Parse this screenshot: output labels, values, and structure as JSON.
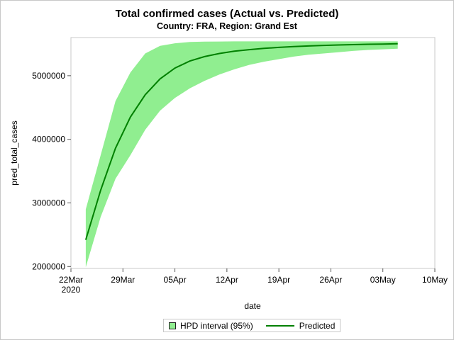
{
  "chart_data": {
    "type": "line",
    "title": "Total confirmed cases (Actual vs. Predicted)",
    "subtitle": "Country: FRA, Region: Grand Est",
    "xlabel": "date",
    "ylabel": "pred_total_cases",
    "xlim": [
      "2020-03-22",
      "2020-05-10"
    ],
    "ylim": [
      1970000,
      5600000
    ],
    "x_ticks": [
      {
        "date": "2020-03-22",
        "label": "22Mar",
        "sublabel": "2020"
      },
      {
        "date": "2020-03-29",
        "label": "29Mar"
      },
      {
        "date": "2020-04-05",
        "label": "05Apr"
      },
      {
        "date": "2020-04-12",
        "label": "12Apr"
      },
      {
        "date": "2020-04-19",
        "label": "19Apr"
      },
      {
        "date": "2020-04-26",
        "label": "26Apr"
      },
      {
        "date": "2020-05-03",
        "label": "03May"
      },
      {
        "date": "2020-05-10",
        "label": "10May"
      }
    ],
    "y_ticks": [
      {
        "value": 2000000,
        "label": "2000000"
      },
      {
        "value": 3000000,
        "label": "3000000"
      },
      {
        "value": 4000000,
        "label": "4000000"
      },
      {
        "value": 5000000,
        "label": "5000000"
      }
    ],
    "grid": false,
    "legend_position": "bottom",
    "x": [
      "2020-03-24",
      "2020-03-26",
      "2020-03-28",
      "2020-03-30",
      "2020-04-01",
      "2020-04-03",
      "2020-04-05",
      "2020-04-07",
      "2020-04-09",
      "2020-04-11",
      "2020-04-13",
      "2020-04-15",
      "2020-04-17",
      "2020-04-19",
      "2020-04-21",
      "2020-04-23",
      "2020-04-25",
      "2020-04-27",
      "2020-04-29",
      "2020-05-01",
      "2020-05-03",
      "2020-05-05"
    ],
    "series": [
      {
        "name": "Predicted",
        "color": "#008000",
        "values": [
          2420000,
          3200000,
          3860000,
          4350000,
          4700000,
          4950000,
          5120000,
          5230000,
          5300000,
          5350000,
          5385000,
          5410000,
          5430000,
          5445000,
          5458000,
          5468000,
          5476000,
          5483000,
          5489000,
          5494000,
          5498000,
          5502000
        ]
      },
      {
        "name": "HPD interval (95%)",
        "type": "band",
        "color": "#90ee90",
        "upper": [
          2900000,
          3750000,
          4600000,
          5050000,
          5350000,
          5470000,
          5510000,
          5530000,
          5536000,
          5538000,
          5540000,
          5540000,
          5540000,
          5540000,
          5540000,
          5540000,
          5540000,
          5540000,
          5540000,
          5540000,
          5540000,
          5540000
        ],
        "lower": [
          1990000,
          2780000,
          3380000,
          3750000,
          4150000,
          4450000,
          4650000,
          4800000,
          4920000,
          5020000,
          5100000,
          5170000,
          5220000,
          5260000,
          5300000,
          5330000,
          5350000,
          5370000,
          5390000,
          5405000,
          5415000,
          5425000
        ]
      }
    ]
  },
  "legend": {
    "band_label": "HPD interval (95%)",
    "line_label": "Predicted"
  }
}
